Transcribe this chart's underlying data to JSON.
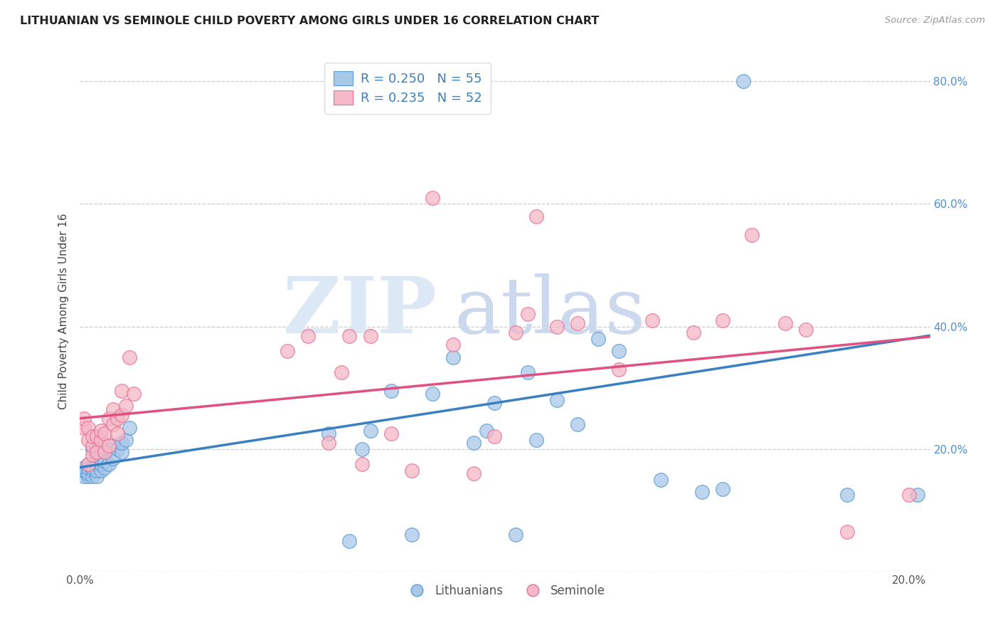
{
  "title": "LITHUANIAN VS SEMINOLE CHILD POVERTY AMONG GIRLS UNDER 16 CORRELATION CHART",
  "source": "Source: ZipAtlas.com",
  "ylabel": "Child Poverty Among Girls Under 16",
  "xlim": [
    0.0,
    0.205
  ],
  "ylim": [
    0.0,
    0.85
  ],
  "x_ticks": [
    0.0,
    0.05,
    0.1,
    0.15,
    0.2
  ],
  "x_tick_labels": [
    "0.0%",
    "",
    "",
    "",
    "20.0%"
  ],
  "y_ticks": [
    0.0,
    0.2,
    0.4,
    0.6,
    0.8
  ],
  "y_tick_labels_right": [
    "",
    "20.0%",
    "40.0%",
    "60.0%",
    "80.0%"
  ],
  "blue_color": "#a8c8e8",
  "pink_color": "#f4b8c8",
  "blue_edge_color": "#5b9bd5",
  "pink_edge_color": "#e87090",
  "blue_line_color": "#3a7fc1",
  "pink_line_color": "#e05080",
  "legend_R_blue": "R = 0.250",
  "legend_N_blue": "N = 55",
  "legend_R_pink": "R = 0.235",
  "legend_N_pink": "N = 52",
  "blue_intercept": 0.17,
  "blue_slope": 1.05,
  "pink_intercept": 0.25,
  "pink_slope": 0.65,
  "blue_x": [
    0.001,
    0.001,
    0.001,
    0.002,
    0.002,
    0.002,
    0.002,
    0.003,
    0.003,
    0.003,
    0.003,
    0.004,
    0.004,
    0.004,
    0.004,
    0.005,
    0.005,
    0.005,
    0.005,
    0.006,
    0.006,
    0.006,
    0.007,
    0.007,
    0.008,
    0.008,
    0.009,
    0.01,
    0.01,
    0.011,
    0.012,
    0.06,
    0.065,
    0.068,
    0.07,
    0.075,
    0.08,
    0.085,
    0.09,
    0.095,
    0.098,
    0.1,
    0.105,
    0.108,
    0.11,
    0.115,
    0.12,
    0.125,
    0.13,
    0.14,
    0.15,
    0.155,
    0.16,
    0.185,
    0.202
  ],
  "blue_y": [
    0.155,
    0.165,
    0.17,
    0.155,
    0.16,
    0.17,
    0.175,
    0.155,
    0.165,
    0.17,
    0.2,
    0.155,
    0.165,
    0.175,
    0.185,
    0.165,
    0.175,
    0.185,
    0.2,
    0.17,
    0.18,
    0.195,
    0.175,
    0.2,
    0.185,
    0.205,
    0.2,
    0.195,
    0.21,
    0.215,
    0.235,
    0.225,
    0.05,
    0.2,
    0.23,
    0.295,
    0.06,
    0.29,
    0.35,
    0.21,
    0.23,
    0.275,
    0.06,
    0.325,
    0.215,
    0.28,
    0.24,
    0.38,
    0.36,
    0.15,
    0.13,
    0.135,
    0.8,
    0.125,
    0.125
  ],
  "pink_x": [
    0.001,
    0.001,
    0.002,
    0.002,
    0.002,
    0.003,
    0.003,
    0.003,
    0.004,
    0.004,
    0.005,
    0.005,
    0.006,
    0.006,
    0.007,
    0.007,
    0.008,
    0.008,
    0.009,
    0.009,
    0.01,
    0.01,
    0.011,
    0.012,
    0.013,
    0.05,
    0.055,
    0.06,
    0.063,
    0.065,
    0.068,
    0.07,
    0.075,
    0.08,
    0.085,
    0.09,
    0.095,
    0.1,
    0.105,
    0.108,
    0.11,
    0.115,
    0.12,
    0.13,
    0.138,
    0.148,
    0.155,
    0.162,
    0.17,
    0.175,
    0.185,
    0.2
  ],
  "pink_y": [
    0.235,
    0.25,
    0.175,
    0.215,
    0.235,
    0.19,
    0.205,
    0.22,
    0.195,
    0.22,
    0.215,
    0.23,
    0.195,
    0.225,
    0.205,
    0.25,
    0.24,
    0.265,
    0.225,
    0.25,
    0.255,
    0.295,
    0.27,
    0.35,
    0.29,
    0.36,
    0.385,
    0.21,
    0.325,
    0.385,
    0.175,
    0.385,
    0.225,
    0.165,
    0.61,
    0.37,
    0.16,
    0.22,
    0.39,
    0.42,
    0.58,
    0.4,
    0.405,
    0.33,
    0.41,
    0.39,
    0.41,
    0.55,
    0.405,
    0.395,
    0.065,
    0.125
  ]
}
